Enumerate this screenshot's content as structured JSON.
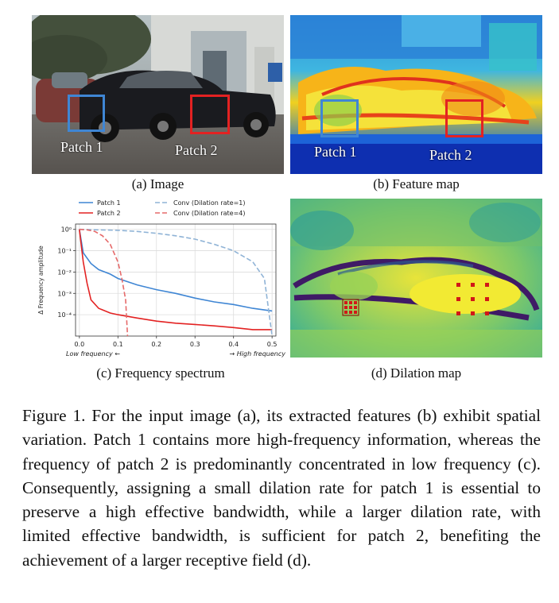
{
  "panels": {
    "a": {
      "caption": "(a) Image",
      "patch1": "Patch 1",
      "patch2": "Patch 2"
    },
    "b": {
      "caption": "(b) Feature map",
      "patch1": "Patch 1",
      "patch2": "Patch 2"
    },
    "c": {
      "caption": "(c) Frequency spectrum",
      "low_label": "Low frequency ←",
      "high_label": "→ High frequency"
    },
    "d": {
      "caption": "(d) Dilation map"
    }
  },
  "colors": {
    "patch1": "#3f86d4",
    "patch2": "#e32222",
    "conv1": "#8fb3d6",
    "conv4": "#e66a6a"
  },
  "chart_data": {
    "type": "line",
    "ylabel": "Δ Frequency amplitude",
    "xlabel": "",
    "xlim": [
      -0.01,
      0.51
    ],
    "ylim_log10": [
      -5,
      0.25
    ],
    "yscale": "log",
    "grid": true,
    "legend_position": "top",
    "x_ticks": [
      "0.0",
      "0.1",
      "0.2",
      "0.3",
      "0.4",
      "0.5"
    ],
    "x_tick_values": [
      0,
      0.1,
      0.2,
      0.3,
      0.4,
      0.5
    ],
    "y_ticks": [
      "10⁰",
      "10⁻¹",
      "10⁻²",
      "10⁻³",
      "10⁻⁴"
    ],
    "y_tick_log": [
      0,
      -1,
      -2,
      -3,
      -4
    ],
    "series": [
      {
        "name": "Patch 1",
        "style": "solid",
        "color": "#3f86d4",
        "x": [
          0.0,
          0.01,
          0.03,
          0.05,
          0.08,
          0.1,
          0.15,
          0.2,
          0.25,
          0.3,
          0.35,
          0.4,
          0.45,
          0.5
        ],
        "y": [
          1.0,
          0.08,
          0.025,
          0.013,
          0.008,
          0.005,
          0.0025,
          0.0015,
          0.001,
          0.0006,
          0.0004,
          0.0003,
          0.0002,
          0.00015
        ]
      },
      {
        "name": "Patch 2",
        "style": "solid",
        "color": "#e32222",
        "x": [
          0.0,
          0.01,
          0.02,
          0.03,
          0.05,
          0.08,
          0.1,
          0.15,
          0.2,
          0.25,
          0.3,
          0.35,
          0.4,
          0.45,
          0.5
        ],
        "y": [
          1.0,
          0.03,
          0.003,
          0.0005,
          0.0002,
          0.00012,
          0.0001,
          7e-05,
          5e-05,
          4e-05,
          3.5e-05,
          3e-05,
          2.5e-05,
          2e-05,
          2e-05
        ]
      },
      {
        "name": "Conv (Dilation rate=1)",
        "style": "dashed",
        "color": "#8fb3d6",
        "x": [
          0.0,
          0.05,
          0.1,
          0.15,
          0.2,
          0.25,
          0.3,
          0.35,
          0.4,
          0.45,
          0.48,
          0.5
        ],
        "y": [
          1.0,
          0.95,
          0.9,
          0.8,
          0.65,
          0.5,
          0.35,
          0.2,
          0.1,
          0.03,
          0.005,
          1e-05
        ]
      },
      {
        "name": "Conv (Dilation rate=4)",
        "style": "dashed",
        "color": "#e66a6a",
        "x": [
          0.0,
          0.02,
          0.04,
          0.06,
          0.08,
          0.1,
          0.11,
          0.12,
          0.125
        ],
        "y": [
          1.0,
          0.95,
          0.8,
          0.5,
          0.2,
          0.03,
          0.005,
          0.0005,
          1e-05
        ]
      }
    ]
  },
  "figure_caption": "Figure 1. For the input image (a), its extracted features (b) exhibit spatial variation. Patch 1 contains more high-frequency information, whereas the frequency of patch 2 is predominantly concentrated in low frequency (c). Consequently, assigning a small dilation rate for patch 1 is essential to preserve a high effective bandwidth, while a larger dilation rate, with limited effective bandwidth, is sufficient for patch 2, benefiting the achievement of a larger receptive field (d)."
}
